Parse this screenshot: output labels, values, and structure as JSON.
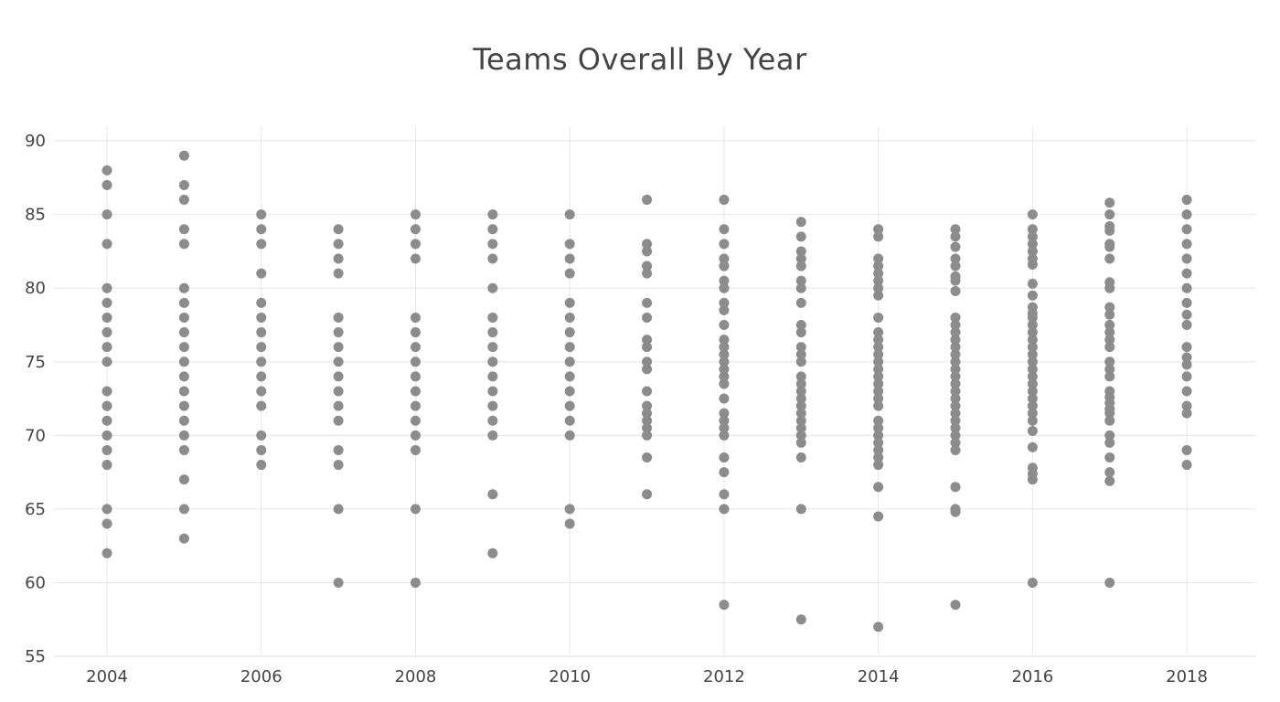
{
  "chart_data": {
    "type": "scatter",
    "title": "Teams Overall By Year",
    "xlabel": "",
    "ylabel": "",
    "xlim": [
      2003.3,
      2018.9
    ],
    "ylim": [
      55,
      91
    ],
    "x_ticks": [
      2004,
      2006,
      2008,
      2010,
      2012,
      2014,
      2016,
      2018
    ],
    "y_ticks": [
      55,
      60,
      65,
      70,
      75,
      80,
      85,
      90
    ],
    "grid": true,
    "marker_color": "#8c8c8c",
    "points_by_year": [
      {
        "year": 2004,
        "values": [
          88,
          87,
          85,
          83,
          80,
          79,
          78,
          77,
          76,
          75,
          73,
          72,
          71,
          70,
          69,
          68,
          65,
          64,
          62
        ]
      },
      {
        "year": 2005,
        "values": [
          89,
          87,
          86,
          84,
          83,
          80,
          79,
          78,
          77,
          76,
          75,
          74,
          73,
          72,
          71,
          70,
          69,
          67,
          65,
          63
        ]
      },
      {
        "year": 2006,
        "values": [
          85,
          84,
          83,
          81,
          79,
          78,
          77,
          76,
          75,
          74,
          73,
          72,
          70,
          69,
          68
        ]
      },
      {
        "year": 2007,
        "values": [
          84,
          83,
          82,
          81,
          78,
          77,
          76,
          75,
          74,
          73,
          72,
          71,
          69,
          68,
          65,
          60
        ]
      },
      {
        "year": 2008,
        "values": [
          85,
          84,
          83,
          82,
          78,
          77,
          76,
          75,
          74,
          73,
          72,
          71,
          70,
          69,
          65,
          60
        ]
      },
      {
        "year": 2009,
        "values": [
          85,
          84,
          83,
          82,
          80,
          78,
          77,
          76,
          75,
          74,
          73,
          72,
          71,
          70,
          66,
          62
        ]
      },
      {
        "year": 2010,
        "values": [
          85,
          83,
          82,
          81,
          79,
          78,
          77,
          76,
          75,
          74,
          73,
          72,
          71,
          70,
          65,
          64
        ]
      },
      {
        "year": 2011,
        "values": [
          86,
          83,
          82.5,
          81.5,
          81,
          79,
          78,
          76.5,
          76,
          75,
          74.5,
          73,
          72,
          71.5,
          71,
          70.5,
          70,
          68.5,
          66
        ]
      },
      {
        "year": 2012,
        "values": [
          86,
          84,
          83,
          82,
          81.5,
          80.5,
          80,
          79,
          78.5,
          77.5,
          76.5,
          76,
          75.5,
          75,
          74.5,
          74,
          73.5,
          72.5,
          71.5,
          71,
          70.5,
          70,
          68.5,
          67.5,
          66,
          65,
          58.5
        ]
      },
      {
        "year": 2013,
        "values": [
          84.5,
          83.5,
          82.5,
          82,
          81.5,
          80.5,
          80,
          79,
          77.5,
          77,
          76,
          75.5,
          75,
          74,
          73.5,
          73,
          72.5,
          72,
          71.5,
          71,
          70.5,
          70,
          69.5,
          68.5,
          65,
          57.5
        ]
      },
      {
        "year": 2014,
        "values": [
          84,
          83.5,
          82,
          81.5,
          81,
          80.5,
          80,
          79.5,
          78,
          77,
          76.5,
          76,
          75.5,
          75,
          74.5,
          74,
          73.5,
          73,
          72.5,
          72,
          71,
          70.5,
          70,
          69.5,
          69,
          68.5,
          68,
          66.5,
          64.5,
          57
        ]
      },
      {
        "year": 2015,
        "values": [
          84,
          83.5,
          82.8,
          82,
          81.5,
          80.8,
          80.5,
          79.8,
          78,
          77.5,
          77,
          76.5,
          76,
          75.5,
          75,
          74.5,
          74,
          73.5,
          73,
          72.5,
          72,
          71.5,
          71,
          70.5,
          70,
          69.5,
          69,
          66.5,
          65,
          64.8,
          58.5
        ]
      },
      {
        "year": 2016,
        "values": [
          85,
          84,
          83.5,
          83,
          82.5,
          82,
          81.6,
          80.3,
          79.5,
          78.7,
          78.3,
          78,
          77.5,
          77,
          76.5,
          76,
          75.5,
          75,
          74.5,
          74,
          73.5,
          73,
          72.5,
          72,
          71.5,
          71,
          70.3,
          69.2,
          67.8,
          67.4,
          67,
          60
        ]
      },
      {
        "year": 2017,
        "values": [
          85.8,
          85,
          84.2,
          83.9,
          83,
          82.8,
          82,
          80.4,
          80,
          78.7,
          78.2,
          77.5,
          77,
          76.5,
          76,
          75,
          74.5,
          74,
          73,
          72.6,
          72.2,
          71.8,
          71.5,
          71,
          70,
          69.5,
          68.5,
          67.5,
          66.9,
          60
        ]
      },
      {
        "year": 2018,
        "values": [
          86,
          85,
          84,
          83,
          82,
          81,
          80,
          79,
          78.2,
          77.5,
          76,
          75.3,
          74.8,
          74,
          73,
          72,
          71.5,
          69,
          68
        ]
      }
    ]
  }
}
